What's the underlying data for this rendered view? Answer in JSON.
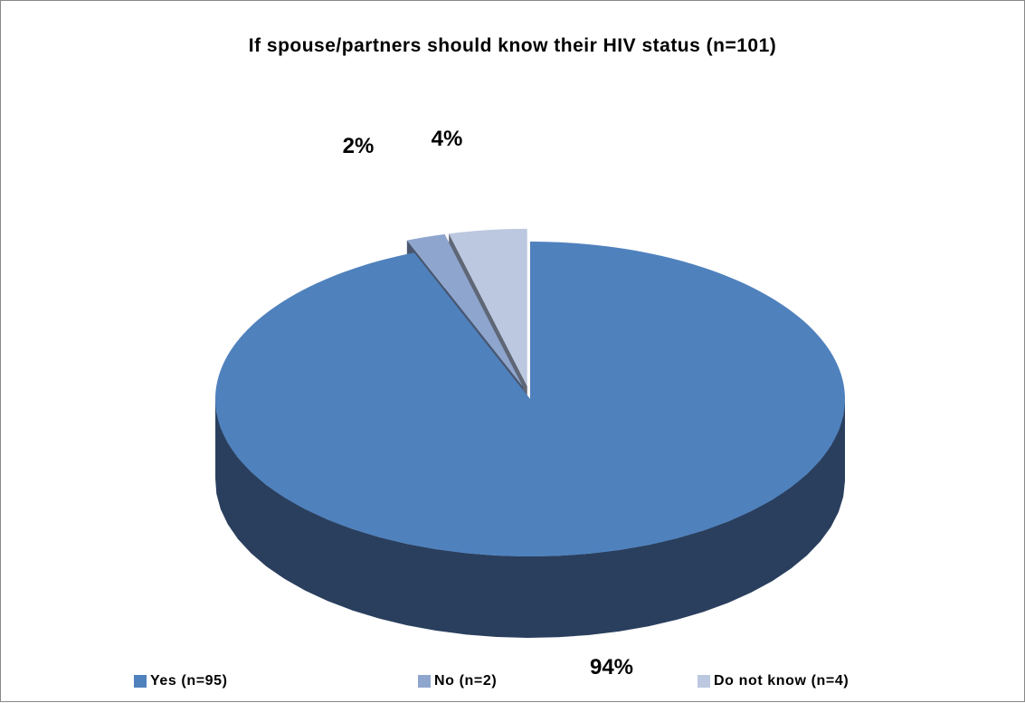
{
  "chart_data": {
    "type": "pie",
    "title": "If spouse/partners should know their HIV status (n=101)",
    "slices": [
      {
        "name": "Yes (n=95)",
        "value": 94,
        "label": "94%",
        "color": "#4F81BD",
        "side_color": "#2A3F5E",
        "exploded": false
      },
      {
        "name": "No (n=2)",
        "value": 2,
        "label": "2%",
        "color": "#8EA5CE",
        "side_color": "#49566D",
        "exploded": true
      },
      {
        "name": "Do not know (n=4)",
        "value": 4,
        "label": "4%",
        "color": "#BCC8E0",
        "side_color": "#5F6675",
        "exploded": true
      }
    ],
    "legend_position": "bottom",
    "three_d": true
  }
}
